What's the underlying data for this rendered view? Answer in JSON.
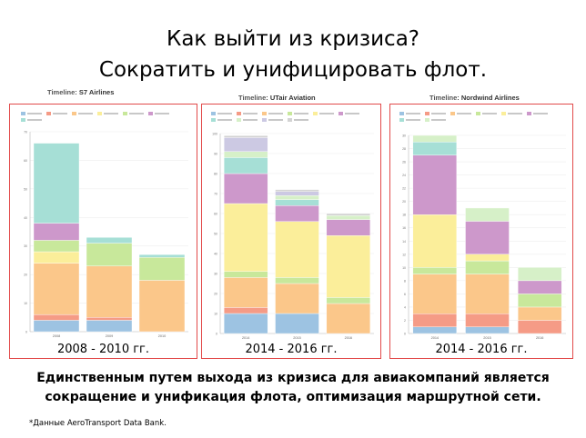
{
  "slide": {
    "title_line1": "Как выйти из кризиса?",
    "title_line2": "Сократить и унифицировать флот.",
    "conclusion_line1": "Единственным путем выхода из кризиса для  авиакомпаний является",
    "conclusion_line2": "сокращение и унификация флота, оптимизация маршрутной сети.",
    "footnote": "*Данные AeroTransport Data Bank."
  },
  "panels": [
    {
      "timeline_prefix": "Timeline:",
      "airline": "S7 Airlines",
      "period": "2008 - 2010 гг."
    },
    {
      "timeline_prefix": "Timeline:",
      "airline": "UTair Aviation",
      "period": "2014 - 2016 гг."
    },
    {
      "timeline_prefix": "Timeline:",
      "airline": "Nordwind Airlines",
      "period": "2014 - 2016 гг."
    }
  ],
  "colors": {
    "blue": "#9dc3e2",
    "salmon": "#f59b86",
    "orange": "#fbc78a",
    "yellow": "#fbee9a",
    "green": "#c8e89b",
    "purple": "#cd98cb",
    "teal": "#a6dfd6",
    "lavender": "#ccc9e3",
    "lightgreen": "#d6f0c8",
    "grey": "#d3d3d3",
    "border": "#e24a4a"
  },
  "chart_data": [
    {
      "type": "bar",
      "stacked": true,
      "categories": [
        "2008",
        "2009",
        "2010"
      ],
      "ylim": [
        0,
        70
      ],
      "yticks": [
        0,
        10,
        20,
        30,
        40,
        50,
        60,
        70
      ],
      "series": [
        {
          "color": "blue",
          "values": [
            4,
            4,
            0
          ]
        },
        {
          "color": "salmon",
          "values": [
            2,
            1,
            0
          ]
        },
        {
          "color": "orange",
          "values": [
            18,
            18,
            18
          ]
        },
        {
          "color": "yellow",
          "values": [
            4,
            0,
            0
          ]
        },
        {
          "color": "green",
          "values": [
            4,
            8,
            8
          ]
        },
        {
          "color": "purple",
          "values": [
            6,
            0,
            0
          ]
        },
        {
          "color": "teal",
          "values": [
            28,
            2,
            1
          ]
        }
      ]
    },
    {
      "type": "bar",
      "stacked": true,
      "categories": [
        "2014",
        "2015",
        "2016"
      ],
      "ylim": [
        0,
        100
      ],
      "yticks": [
        0,
        10,
        20,
        30,
        40,
        50,
        60,
        70,
        80,
        90,
        100
      ],
      "series": [
        {
          "color": "blue",
          "values": [
            10,
            10,
            0
          ]
        },
        {
          "color": "salmon",
          "values": [
            3,
            0,
            0
          ]
        },
        {
          "color": "orange",
          "values": [
            15,
            15,
            15
          ]
        },
        {
          "color": "green",
          "values": [
            3,
            3,
            3
          ]
        },
        {
          "color": "yellow",
          "values": [
            34,
            28,
            31
          ]
        },
        {
          "color": "purple",
          "values": [
            15,
            8,
            8
          ]
        },
        {
          "color": "teal",
          "values": [
            8,
            3,
            0
          ]
        },
        {
          "color": "lightgreen",
          "values": [
            3,
            2,
            2
          ]
        },
        {
          "color": "lavender",
          "values": [
            7,
            2,
            0
          ]
        },
        {
          "color": "grey",
          "values": [
            1,
            1,
            1
          ]
        }
      ]
    },
    {
      "type": "bar",
      "stacked": true,
      "categories": [
        "2014",
        "2015",
        "2016"
      ],
      "ylim": [
        0,
        30
      ],
      "yticks": [
        0,
        2,
        4,
        6,
        8,
        10,
        12,
        14,
        16,
        18,
        20,
        22,
        24,
        26,
        28,
        30
      ],
      "series": [
        {
          "color": "blue",
          "values": [
            1,
            1,
            0
          ]
        },
        {
          "color": "salmon",
          "values": [
            2,
            2,
            2
          ]
        },
        {
          "color": "orange",
          "values": [
            6,
            6,
            2
          ]
        },
        {
          "color": "green",
          "values": [
            1,
            2,
            2
          ]
        },
        {
          "color": "yellow",
          "values": [
            8,
            1,
            0
          ]
        },
        {
          "color": "purple",
          "values": [
            9,
            5,
            2
          ]
        },
        {
          "color": "teal",
          "values": [
            2,
            0,
            0
          ]
        },
        {
          "color": "lightgreen",
          "values": [
            1,
            2,
            2
          ]
        }
      ]
    }
  ]
}
